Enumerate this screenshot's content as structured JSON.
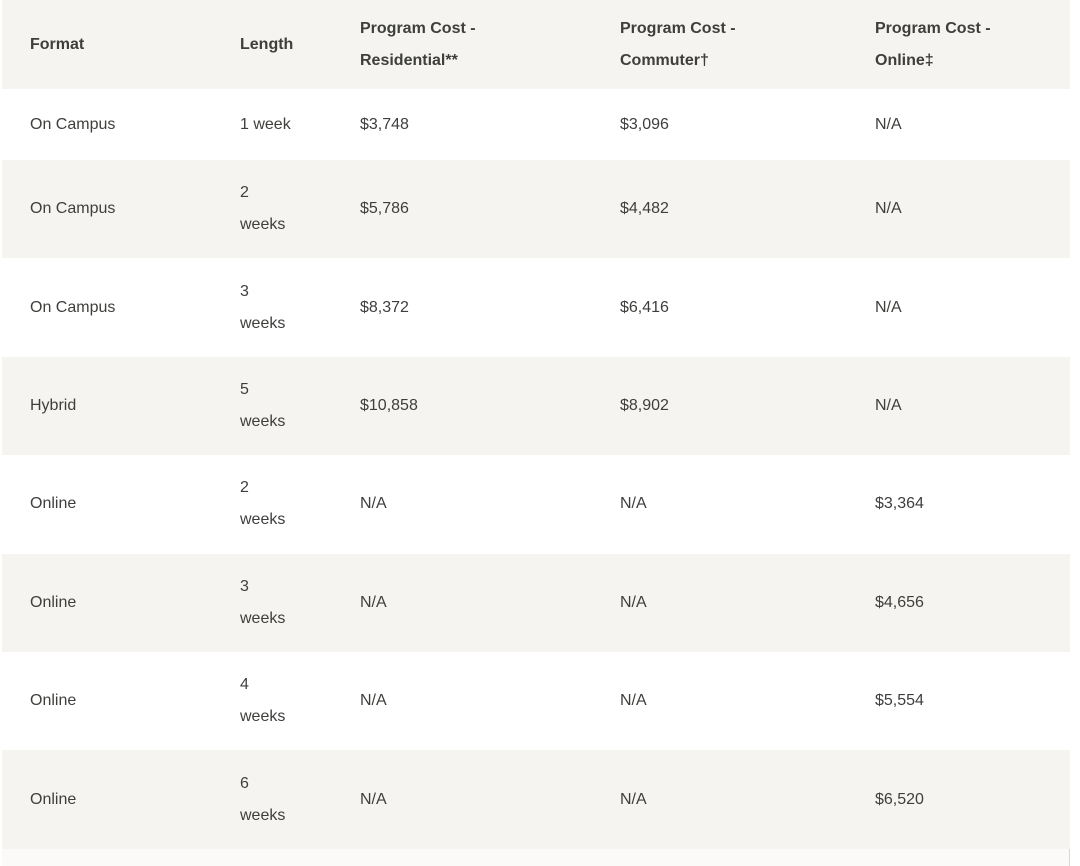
{
  "table": {
    "columns": [
      {
        "label": "Format"
      },
      {
        "label": "Length"
      },
      {
        "label": "Program Cost - Residential**"
      },
      {
        "label": "Program Cost - Commuter†"
      },
      {
        "label": "Program Cost - Online‡"
      }
    ],
    "rows": [
      {
        "format": "On Campus",
        "length": "1 week",
        "residential": "$3,748",
        "commuter": "$3,096",
        "online": "N/A"
      },
      {
        "format": "On Campus",
        "length": "2 weeks",
        "residential": "$5,786",
        "commuter": "$4,482",
        "online": "N/A"
      },
      {
        "format": "On Campus",
        "length": "3 weeks",
        "residential": "$8,372",
        "commuter": "$6,416",
        "online": "N/A"
      },
      {
        "format": "Hybrid",
        "length": "5 weeks",
        "residential": "$10,858",
        "commuter": "$8,902",
        "online": "N/A"
      },
      {
        "format": "Online",
        "length": "2 weeks",
        "residential": "N/A",
        "commuter": "N/A",
        "online": "$3,364"
      },
      {
        "format": "Online",
        "length": "3 weeks",
        "residential": "N/A",
        "commuter": "N/A",
        "online": "$4,656"
      },
      {
        "format": "Online",
        "length": "4 weeks",
        "residential": "N/A",
        "commuter": "N/A",
        "online": "$5,554"
      },
      {
        "format": "Online",
        "length": "6 weeks",
        "residential": "N/A",
        "commuter": "N/A",
        "online": "$6,520"
      }
    ]
  },
  "colors": {
    "stripe_row_background": "#f5f4f1",
    "white_row_background": "#ffffff",
    "text": "#3e3e3c",
    "table_edge_border": "#dbd8d3",
    "footer_strip_background": "#fbfaf8"
  }
}
